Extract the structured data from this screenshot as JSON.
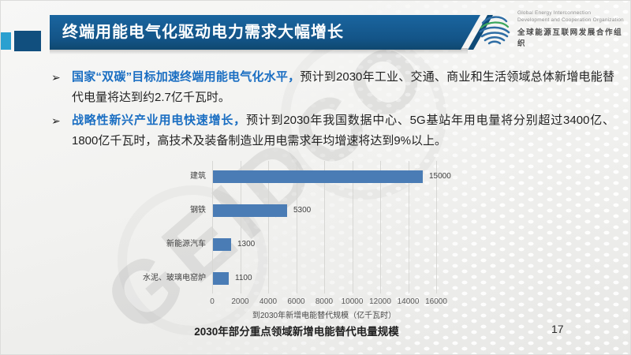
{
  "slide": {
    "title": "终端用能电气化驱动电力需求大幅增长",
    "caption": "2030年部分重点领域新增电能替代电量规模",
    "page_number": "17",
    "watermark": "GEIDCO"
  },
  "logo": {
    "icon": "globe-icon",
    "org_en_line1": "Global Energy Interconnection",
    "org_en_line2": "Development and Cooperation Organization",
    "org_zh": "全球能源互联网发展合作组织"
  },
  "bullets": [
    {
      "marker": "➢",
      "lead": "国家“双碳”目标加速终端用能电气化水平，",
      "body": "预计到2030年工业、交通、商业和生活领域总体新增电能替代电量将达到约2.7亿千瓦时。"
    },
    {
      "marker": "➢",
      "lead": "战略性新兴产业用电快速增长，",
      "body": "预计到2030年我国数据中心、5G基站年用电量将分别超过3400亿、1800亿千瓦时，高技术及装备制造业用电需求年均增速将达到9%以上。"
    }
  ],
  "chart_data": {
    "type": "bar",
    "orientation": "horizontal",
    "categories": [
      "建筑",
      "钢铁",
      "新能源汽车",
      "水泥、玻璃电窑炉"
    ],
    "values": [
      15000,
      5300,
      1300,
      1100
    ],
    "value_labels": [
      "15000",
      "5300",
      "1300",
      "1100"
    ],
    "x_ticks": [
      "0",
      "2000",
      "4000",
      "6000",
      "8000",
      "10000",
      "12000",
      "14000",
      "16000"
    ],
    "xlim": [
      0,
      16000
    ],
    "xlabel": "到2030年新增电能替代规模（亿千瓦时）",
    "grid": true,
    "legend": "none",
    "bar_color": "#4a7cb5"
  },
  "colors": {
    "title_bar_blue": "#135487",
    "accent_cyan": "#2ba0d0",
    "accent_navy": "#114f7e",
    "bullet_lead_blue": "#1a6ec2",
    "bar_blue": "#4a7cb5",
    "gridline": "#d7d7d4"
  }
}
